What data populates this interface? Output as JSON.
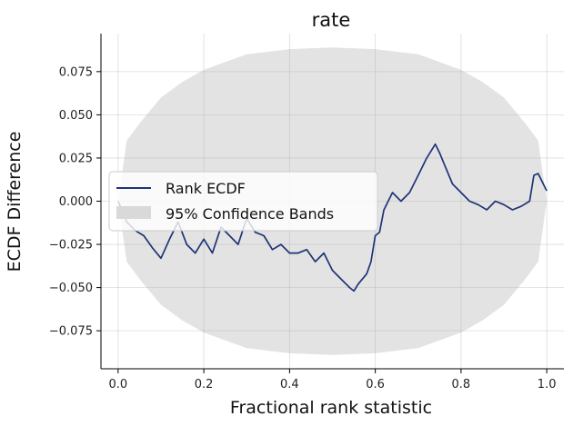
{
  "chart_data": {
    "type": "line",
    "title": "rate",
    "xlabel": "Fractional rank statistic",
    "ylabel": "ECDF Difference",
    "xlim": [
      -0.04,
      1.04
    ],
    "ylim": [
      -0.097,
      0.097
    ],
    "xticks": [
      0.0,
      0.2,
      0.4,
      0.6,
      0.8,
      1.0
    ],
    "xtick_labels": [
      "0.0",
      "0.2",
      "0.4",
      "0.6",
      "0.8",
      "1.0"
    ],
    "yticks": [
      -0.075,
      -0.05,
      -0.025,
      0.0,
      0.025,
      0.05,
      0.075
    ],
    "ytick_labels": [
      "−0.075",
      "−0.050",
      "−0.025",
      "0.000",
      "0.025",
      "0.050",
      "0.075"
    ],
    "grid": true,
    "legend_position": "center-left",
    "series": [
      {
        "name": "Rank ECDF",
        "color": "#1f3476",
        "x": [
          0.0,
          0.02,
          0.04,
          0.06,
          0.08,
          0.1,
          0.12,
          0.14,
          0.16,
          0.18,
          0.2,
          0.22,
          0.24,
          0.26,
          0.28,
          0.3,
          0.32,
          0.34,
          0.36,
          0.38,
          0.4,
          0.42,
          0.44,
          0.46,
          0.48,
          0.5,
          0.52,
          0.54,
          0.55,
          0.56,
          0.58,
          0.59,
          0.6,
          0.61,
          0.62,
          0.64,
          0.66,
          0.68,
          0.7,
          0.72,
          0.74,
          0.75,
          0.76,
          0.78,
          0.8,
          0.82,
          0.84,
          0.86,
          0.88,
          0.9,
          0.92,
          0.94,
          0.96,
          0.97,
          0.98,
          1.0
        ],
        "y": [
          0.0,
          -0.012,
          -0.017,
          -0.02,
          -0.027,
          -0.033,
          -0.022,
          -0.012,
          -0.025,
          -0.03,
          -0.022,
          -0.03,
          -0.015,
          -0.02,
          -0.025,
          -0.01,
          -0.018,
          -0.02,
          -0.028,
          -0.025,
          -0.03,
          -0.03,
          -0.028,
          -0.035,
          -0.03,
          -0.04,
          -0.045,
          -0.05,
          -0.052,
          -0.048,
          -0.042,
          -0.035,
          -0.02,
          -0.018,
          -0.005,
          0.005,
          0.0,
          0.005,
          0.015,
          0.025,
          0.033,
          0.028,
          0.022,
          0.01,
          0.005,
          0.0,
          -0.002,
          -0.005,
          0.0,
          -0.002,
          -0.005,
          -0.003,
          0.0,
          0.015,
          0.016,
          0.006
        ]
      },
      {
        "name": "95% Confidence Bands",
        "type": "band",
        "color": "#d9d9d9",
        "x": [
          0.0,
          0.02,
          0.05,
          0.1,
          0.15,
          0.2,
          0.3,
          0.4,
          0.5,
          0.6,
          0.7,
          0.8,
          0.85,
          0.9,
          0.95,
          0.98,
          1.0
        ],
        "upper": [
          0.0,
          0.035,
          0.045,
          0.06,
          0.069,
          0.076,
          0.085,
          0.088,
          0.089,
          0.088,
          0.085,
          0.076,
          0.069,
          0.06,
          0.045,
          0.035,
          0.0
        ],
        "lower": [
          0.0,
          -0.035,
          -0.045,
          -0.06,
          -0.069,
          -0.076,
          -0.085,
          -0.088,
          -0.089,
          -0.088,
          -0.085,
          -0.076,
          -0.069,
          -0.06,
          -0.045,
          -0.035,
          0.0
        ]
      }
    ]
  }
}
